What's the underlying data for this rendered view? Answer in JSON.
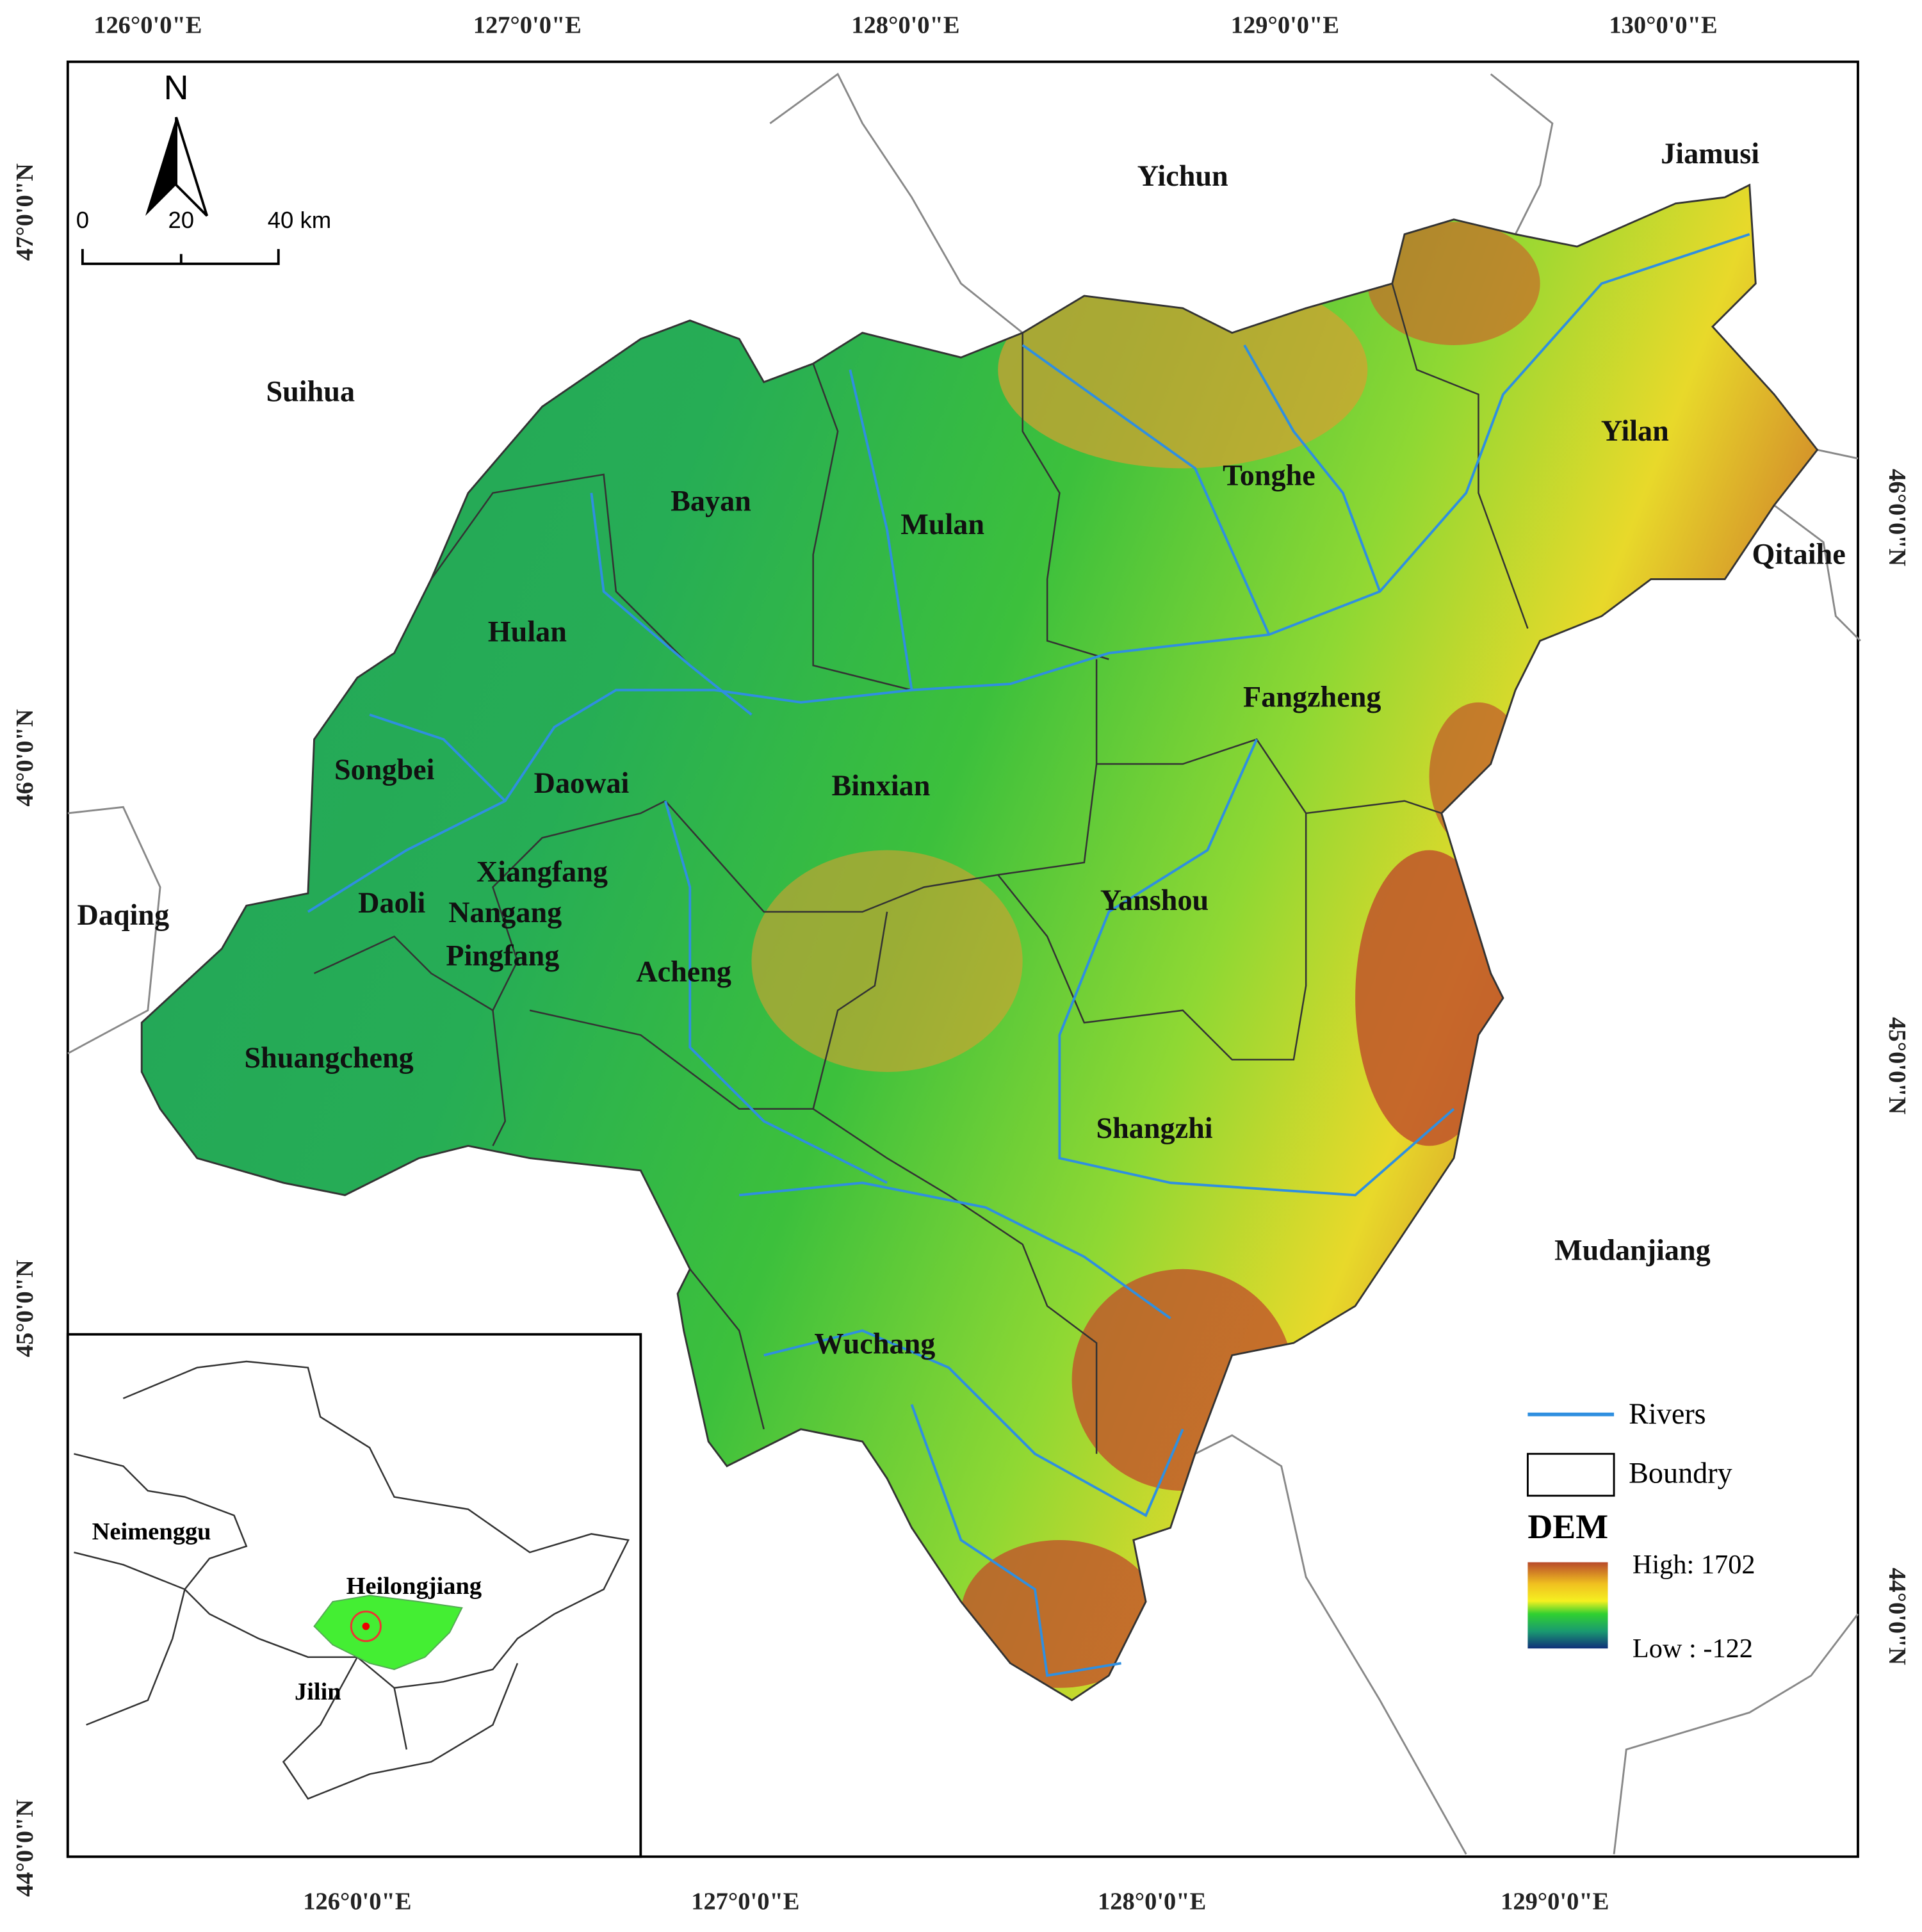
{
  "axes": {
    "top": [
      "126°0'0\"E",
      "127°0'0\"E",
      "128°0'0\"E",
      "129°0'0\"E",
      "130°0'0\"E"
    ],
    "bottom": [
      "126°0'0\"E",
      "127°0'0\"E",
      "128°0'0\"E",
      "129°0'0\"E"
    ],
    "left": [
      "47°0'0\"N",
      "46°0'0\"N",
      "45°0'0\"N",
      "44°0'0\"N"
    ],
    "right": [
      "46°0'0\"N",
      "45°0'0\"N",
      "44°0'0\"N"
    ]
  },
  "north": "N",
  "scale_bar": [
    "0",
    "20",
    "40 km"
  ],
  "neighbors": [
    "Yichun",
    "Jiamusi",
    "Suihua",
    "Qitaihe",
    "Daqing",
    "Mudanjiang"
  ],
  "districts": [
    "Bayan",
    "Mulan",
    "Tonghe",
    "Yilan",
    "Hulan",
    "Fangzheng",
    "Songbei",
    "Daowai",
    "Binxian",
    "Xiangfang",
    "Daoli",
    "Nangang",
    "Yanshou",
    "Pingfang",
    "Acheng",
    "Shuangcheng",
    "Shangzhi",
    "Wuchang"
  ],
  "legend": {
    "rivers": "Rivers",
    "boundary": "Boundry",
    "dem_title": "DEM",
    "high": "High: 1702",
    "low": "Low : -122"
  },
  "inset": {
    "labels": [
      "Neimenggu",
      "Heilongjiang",
      "Jilin"
    ]
  }
}
